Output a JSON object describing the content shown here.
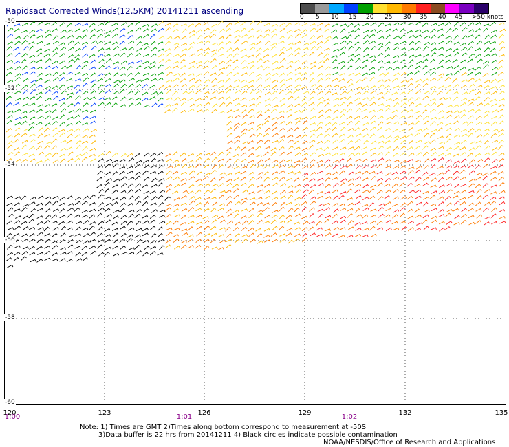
{
  "title": "Rapidsact Corrected Winds(12.5KM) 20141211 ascending",
  "legend": {
    "labels": [
      "0",
      "5",
      "10",
      "15",
      "20",
      "25",
      "30",
      "35",
      "40",
      "45",
      ">50 knots"
    ],
    "colors": [
      "#4d4d4d",
      "#9a9a9a",
      "#00a8ff",
      "#0040ff",
      "#00a000",
      "#ffe030",
      "#ffb800",
      "#ff7a00",
      "#ff2020",
      "#8a4a20",
      "#ff00ff",
      "#7a00c0",
      "#2a006a"
    ]
  },
  "lat_labels": [
    "-50",
    "-52",
    "-54",
    "-56",
    "-58",
    "-60"
  ],
  "lon_labels": [
    "120",
    "123",
    "126",
    "129",
    "132",
    "135"
  ],
  "time_labels": [
    "1:00",
    "1:01",
    "1:02"
  ],
  "notes": {
    "line1": "Note: 1) Times are GMT 2)Times along bottom correspond to measurement at -50S",
    "line2": "3)Data buffer is 22 hrs from 20141211 4) Black circles indicate possible contamination",
    "line3": "NOAA/NESDIS/Office of Research and Applications"
  }
}
